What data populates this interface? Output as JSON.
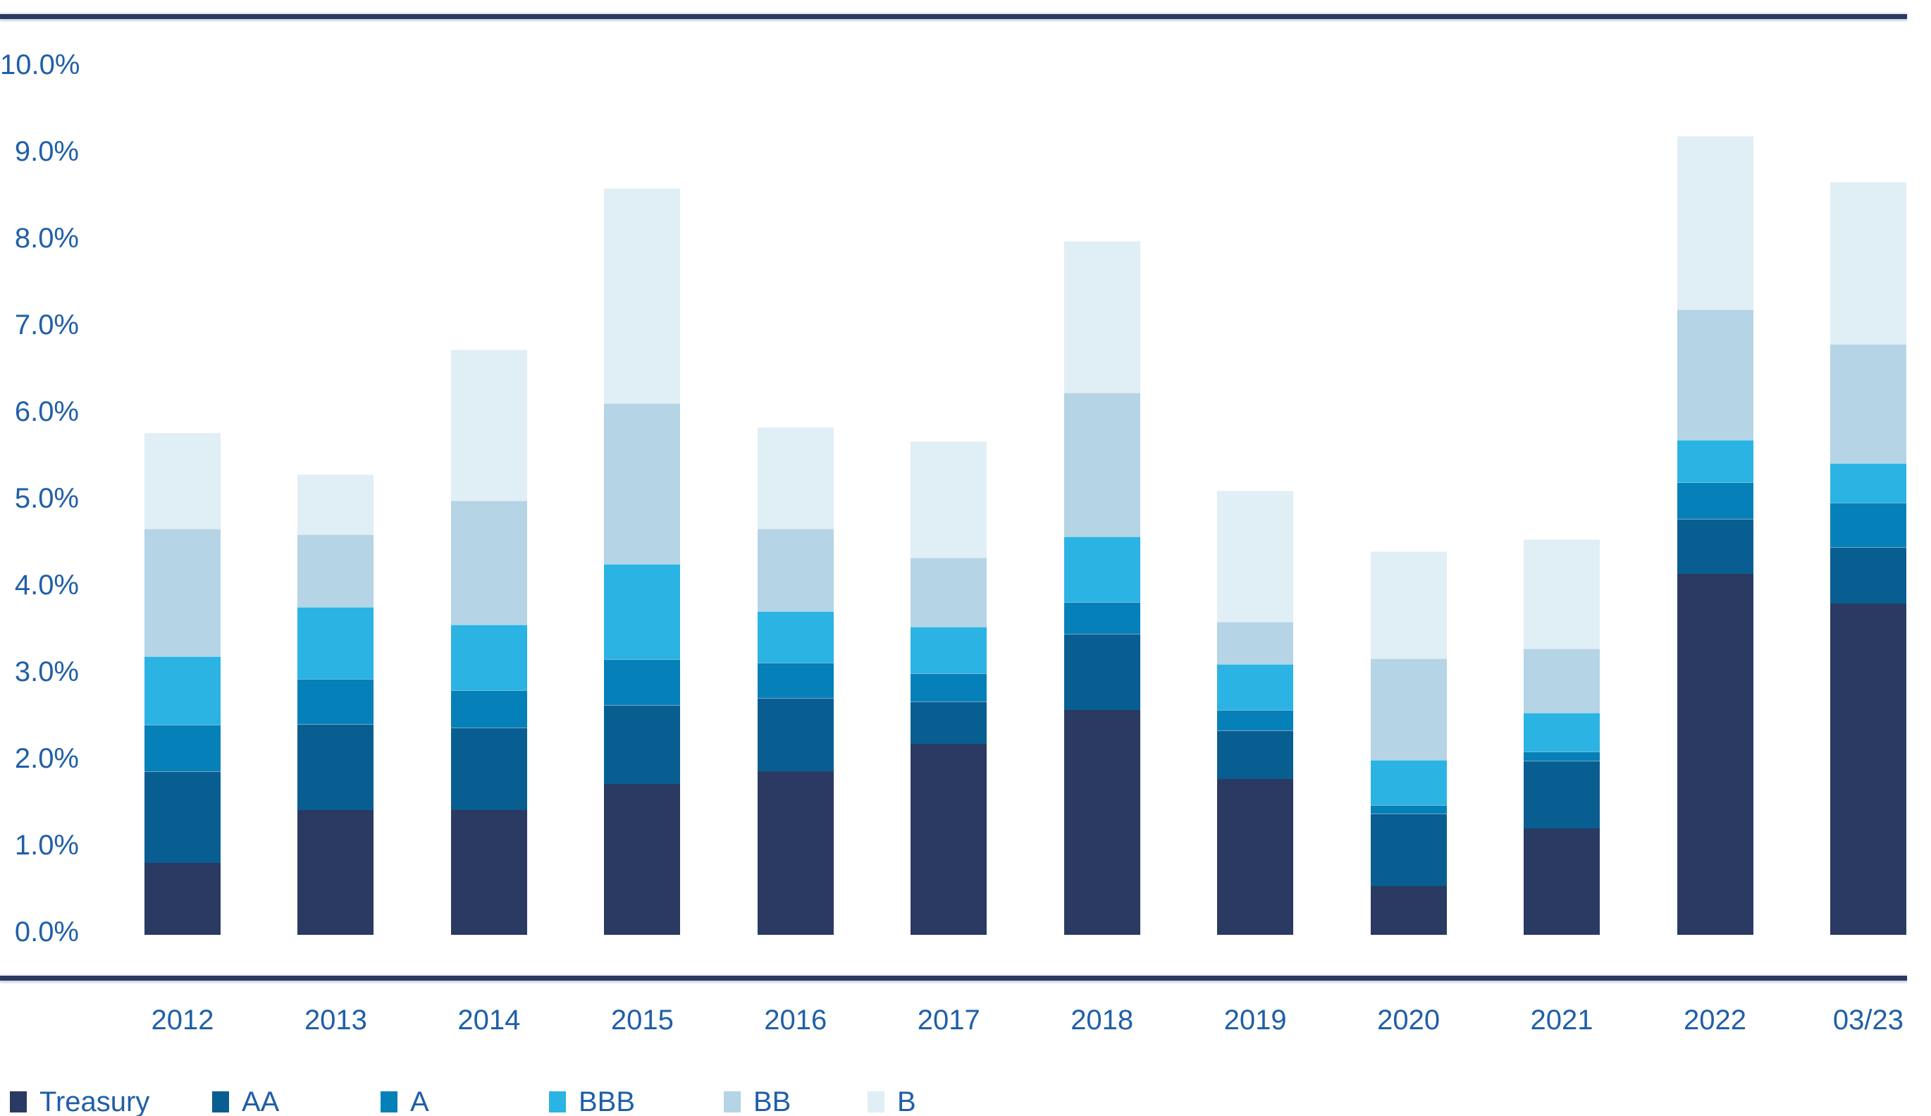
{
  "colors": {
    "rule": "#2A3A62",
    "axis_text": "#1F5FA8",
    "background": "#FFFFFF"
  },
  "chart_data": {
    "type": "bar",
    "stacked": true,
    "title": "",
    "xlabel": "",
    "ylabel": "",
    "ylim": [
      0,
      10
    ],
    "ytick_step": 1,
    "grid": false,
    "legend_position": "bottom-left",
    "yticks": [
      "0.0%",
      "1.0%",
      "2.0%",
      "3.0%",
      "4.0%",
      "5.0%",
      "6.0%",
      "7.0%",
      "8.0%",
      "9.0%",
      "10.0%"
    ],
    "categories": [
      "2012",
      "2013",
      "2014",
      "2015",
      "2016",
      "2017",
      "2018",
      "2019",
      "2020",
      "2021",
      "2022",
      "03/23"
    ],
    "series": [
      {
        "name": "Treasury",
        "color": "#2A3A62",
        "values": [
          0.83,
          1.44,
          1.44,
          1.74,
          1.89,
          2.2,
          2.59,
          1.8,
          0.56,
          1.23,
          4.16,
          3.82
        ]
      },
      {
        "name": "AA",
        "color": "#095E91",
        "values": [
          1.06,
          0.99,
          0.95,
          0.91,
          0.84,
          0.49,
          0.88,
          0.56,
          0.84,
          0.78,
          0.64,
          0.65
        ]
      },
      {
        "name": "A",
        "color": "#0680B8",
        "values": [
          0.53,
          0.52,
          0.43,
          0.53,
          0.41,
          0.33,
          0.37,
          0.23,
          0.1,
          0.1,
          0.42,
          0.51
        ]
      },
      {
        "name": "BBB",
        "color": "#2BB3E3",
        "values": [
          0.79,
          0.83,
          0.76,
          1.1,
          0.59,
          0.53,
          0.75,
          0.53,
          0.52,
          0.45,
          0.49,
          0.46
        ]
      },
      {
        "name": "BB",
        "color": "#B5D4E5",
        "values": [
          1.47,
          0.84,
          1.43,
          1.85,
          0.95,
          0.8,
          1.66,
          0.49,
          1.17,
          0.74,
          1.5,
          1.37
        ]
      },
      {
        "name": "B",
        "color": "#E0EEF5",
        "values": [
          1.11,
          0.69,
          1.74,
          2.48,
          1.17,
          1.34,
          1.75,
          1.51,
          1.23,
          1.26,
          2.0,
          1.87
        ]
      }
    ],
    "totals": [
      5.79,
      5.31,
      6.75,
      8.61,
      5.85,
      5.69,
      8.0,
      5.12,
      4.42,
      4.56,
      9.21,
      8.68
    ]
  }
}
